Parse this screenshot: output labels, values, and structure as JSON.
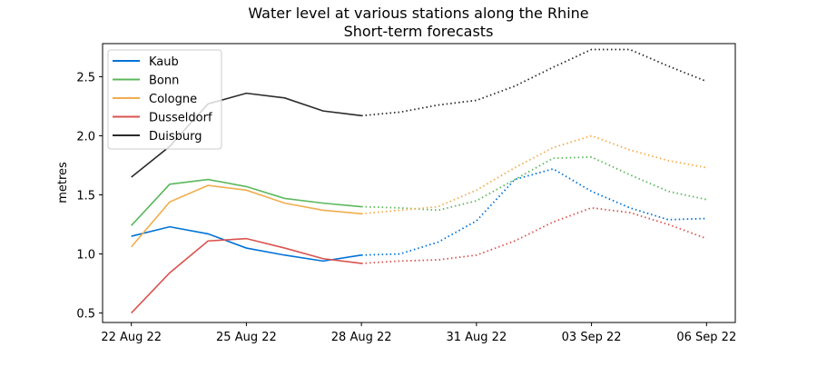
{
  "chart_data": {
    "type": "line",
    "title": "Water level at various stations along the Rhine",
    "subtitle": "Short-term forecasts",
    "xlabel": "",
    "ylabel": "metres",
    "ylim": [
      0.42,
      2.78
    ],
    "xlim_days": [
      -0.75,
      15.75
    ],
    "x_start_date": "22 Aug 22",
    "x_ticks": [
      {
        "day": 0,
        "label": "22 Aug 22"
      },
      {
        "day": 3,
        "label": "25 Aug 22"
      },
      {
        "day": 6,
        "label": "28 Aug 22"
      },
      {
        "day": 9,
        "label": "31 Aug 22"
      },
      {
        "day": 12,
        "label": "03 Sep 22"
      },
      {
        "day": 15,
        "label": "06 Sep 22"
      }
    ],
    "y_ticks": [
      0.5,
      1.0,
      1.5,
      2.0,
      2.5
    ],
    "grid": false,
    "legend_position": "top-left",
    "observed_days": [
      0,
      1,
      2,
      3,
      4,
      5,
      6
    ],
    "forecast_days": [
      6,
      7,
      8,
      9,
      10,
      11,
      12,
      13,
      14,
      15
    ],
    "series": [
      {
        "name": "Kaub",
        "color": "#0072d6",
        "observed": [
          1.15,
          1.23,
          1.17,
          1.05,
          0.99,
          0.94,
          0.99
        ],
        "forecast": [
          0.99,
          1.0,
          1.1,
          1.28,
          1.63,
          1.72,
          1.53,
          1.39,
          1.29,
          1.3
        ]
      },
      {
        "name": "Bonn",
        "color": "#5cb85c",
        "observed": [
          1.24,
          1.59,
          1.63,
          1.57,
          1.47,
          1.43,
          1.4
        ],
        "forecast": [
          1.4,
          1.39,
          1.37,
          1.45,
          1.63,
          1.81,
          1.82,
          1.67,
          1.53,
          1.46
        ]
      },
      {
        "name": "Cologne",
        "color": "#f0ad4e",
        "observed": [
          1.06,
          1.44,
          1.58,
          1.54,
          1.43,
          1.37,
          1.34
        ],
        "forecast": [
          1.34,
          1.37,
          1.4,
          1.54,
          1.73,
          1.9,
          2.0,
          1.88,
          1.79,
          1.73
        ]
      },
      {
        "name": "Dusseldorf",
        "color": "#d9534f",
        "observed": [
          0.5,
          0.84,
          1.11,
          1.13,
          1.05,
          0.96,
          0.92
        ],
        "forecast": [
          0.92,
          0.94,
          0.95,
          0.99,
          1.11,
          1.27,
          1.39,
          1.35,
          1.25,
          1.13
        ]
      },
      {
        "name": "Duisburg",
        "color": "#292b2c",
        "observed": [
          1.65,
          1.91,
          2.27,
          2.36,
          2.32,
          2.21,
          2.17
        ],
        "forecast": [
          2.17,
          2.2,
          2.26,
          2.3,
          2.42,
          2.58,
          2.73,
          2.73,
          2.59,
          2.46
        ]
      }
    ]
  }
}
